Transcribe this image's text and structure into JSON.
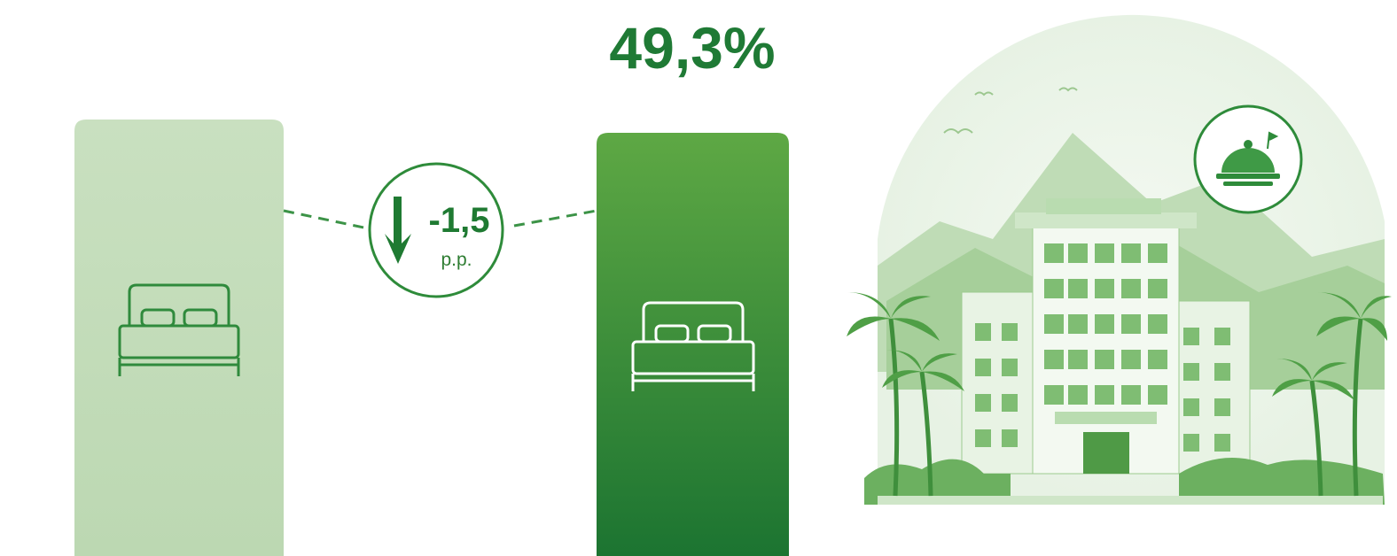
{
  "headline": "49,3%",
  "change": {
    "value": "-1,5",
    "unit": "p.p."
  }
}
